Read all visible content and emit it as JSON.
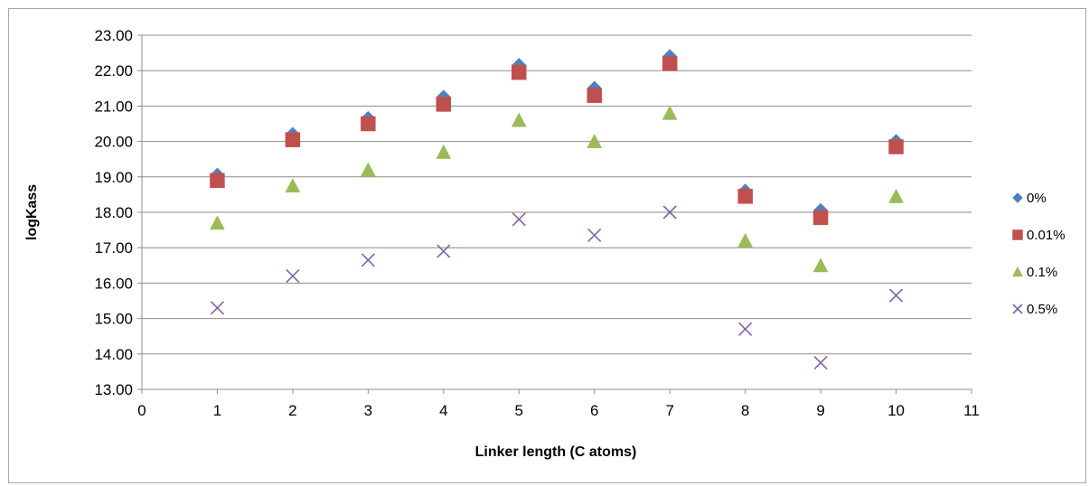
{
  "chart_data": {
    "type": "scatter",
    "title": "",
    "xlabel": "Linker length (C atoms)",
    "ylabel": "logKass",
    "xlim": [
      0,
      11
    ],
    "ylim": [
      13,
      23
    ],
    "x_ticks": [
      "0",
      "1",
      "2",
      "3",
      "4",
      "5",
      "6",
      "7",
      "8",
      "9",
      "10",
      "11"
    ],
    "y_ticks": [
      "13.00",
      "14.00",
      "15.00",
      "16.00",
      "17.00",
      "18.00",
      "19.00",
      "20.00",
      "21.00",
      "22.00",
      "23.00"
    ],
    "grid": "horizontal major gridlines",
    "legend_position": "right",
    "x": [
      1,
      2,
      3,
      4,
      5,
      6,
      7,
      8,
      9,
      10
    ],
    "series": [
      {
        "name": "0%",
        "marker": "diamond",
        "color": "#4F81BD",
        "values": [
          19.05,
          20.2,
          20.65,
          21.25,
          22.15,
          21.5,
          22.4,
          18.6,
          18.05,
          20.0
        ]
      },
      {
        "name": "0.01%",
        "marker": "square",
        "color": "#C0504D",
        "values": [
          18.9,
          20.05,
          20.5,
          21.05,
          21.95,
          21.3,
          22.2,
          18.45,
          17.85,
          19.85
        ]
      },
      {
        "name": "0.1%",
        "marker": "triangle",
        "color": "#9BBB59",
        "values": [
          17.7,
          18.75,
          19.2,
          19.7,
          20.6,
          20.0,
          20.8,
          17.2,
          16.5,
          18.45
        ]
      },
      {
        "name": "0.5%",
        "marker": "x",
        "color": "#8064A2",
        "values": [
          15.3,
          16.2,
          16.65,
          16.9,
          17.8,
          17.35,
          18.0,
          14.7,
          13.75,
          15.65
        ]
      }
    ]
  }
}
